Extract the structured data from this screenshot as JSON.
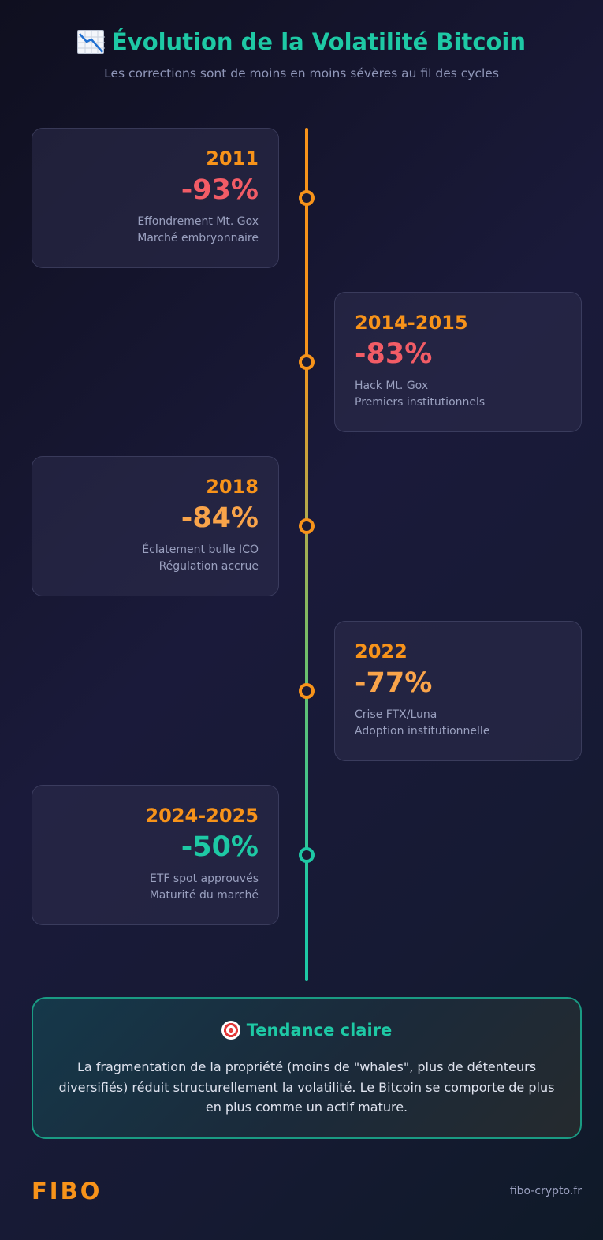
{
  "header": {
    "title": "Évolution de la Volatilité Bitcoin",
    "title_icon": "chart-decreasing-icon",
    "subtitle": "Les corrections sont de moins en moins sévères au fil des cycles"
  },
  "events": [
    {
      "year": "2011",
      "drop": "-93%",
      "line1": "Effondrement Mt. Gox",
      "line2": "Marché embryonnaire",
      "color": "#f25c66"
    },
    {
      "year": "2014-2015",
      "drop": "-83%",
      "line1": "Hack Mt. Gox",
      "line2": "Premiers institutionnels",
      "color": "#f25c66"
    },
    {
      "year": "2018",
      "drop": "-84%",
      "line1": "Éclatement bulle ICO",
      "line2": "Régulation accrue",
      "color": "#f9a44a"
    },
    {
      "year": "2022",
      "drop": "-77%",
      "line1": "Crise FTX/Luna",
      "line2": "Adoption institutionnelle",
      "color": "#f9a44a"
    },
    {
      "year": "2024-2025",
      "drop": "-50%",
      "line1": "ETF spot approuvés",
      "line2": "Maturité du marché",
      "color": "#1ec9a5"
    }
  ],
  "trend": {
    "icon": "target-icon",
    "title": "Tendance claire",
    "text": "La fragmentation de la propriété (moins de \"whales\", plus de détenteurs diversifiés) réduit structurellement la volatilité. Le Bitcoin se comporte de plus en plus comme un actif mature."
  },
  "footer": {
    "logo": "FIBO",
    "site": "fibo-crypto.fr"
  },
  "colors": {
    "accent_orange": "#f7931a",
    "accent_teal": "#1ec9a5",
    "accent_red": "#f25c66"
  }
}
